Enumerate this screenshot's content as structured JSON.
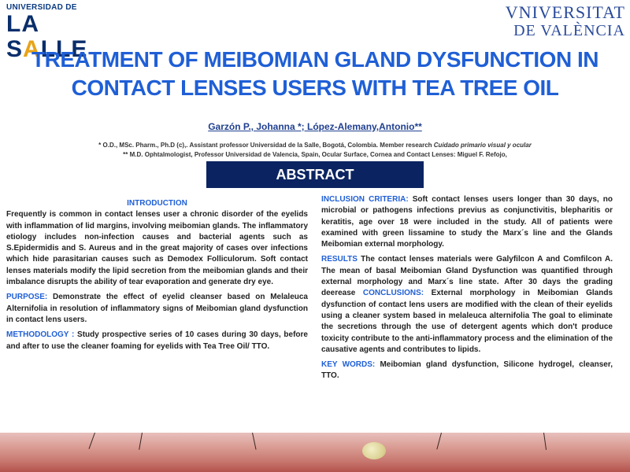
{
  "logos": {
    "left": {
      "small": "UNIVERSIDAD DE",
      "big_pre": "LA S",
      "big_accent": "A",
      "big_post": "LLE"
    },
    "right": {
      "line1": "VNIVERSITAT",
      "line2": "DE VALÈNCIA"
    }
  },
  "title": "TREATMENT OF MEIBOMIAN GLAND DYSFUNCTION IN CONTACT LENSES USERS WITH TEA TREE OIL",
  "authors": "Garzón P., Johanna *; López-Alemany,Antonio**",
  "affiliation1": {
    "text": "* O.D., MSc. Pharm., Ph.D (c),. Assistant professor Universidad de la Salle, Bogotá, Colombia. Member research ",
    "italic": "Cuidado primario visual y ocular"
  },
  "affiliation2": "** M.D. Ophtalmologist, Professor Universidad de Valencia, Spain, Ocular Surface, Cornea and Contact Lenses: Miguel F. Refojo,",
  "abstract_label": "ABSTRACT",
  "left": {
    "intro_heading": "INTRODUCTION",
    "intro_text": "Frequently is common in contact lenses user a chronic disorder of the eyelids with inflammation of lid margins, involving meibomian glands. The inflammatory etiology includes non-infection causes and bacterial agents such as S.Epidermidis and S. Aureus  and in the great majority of cases over infections which hide parasitarian causes such as Demodex Folliculorum. Soft contact lenses materials modify the lipid secretion from the meibomian glands and their imbalance disrupts the ability of tear evaporation and generate dry eye.",
    "purpose_label": "PURPOSE:",
    "purpose_text": " Demonstrate the effect of eyelid cleanser based on Melaleuca Alternifolia in resolution of inflammatory signs of Meibomian gland dysfunction in contact lens users.",
    "method_label": "METHODOLOGY :",
    "method_text": "  Study prospective series of 10 cases during 30 days, before and after to use the cleaner foaming for eyelids with Tea Tree Oil/ TTO."
  },
  "right": {
    "inclusion_label": "INCLUSION CRITERIA:",
    "inclusion_text": " Soft contact lenses users longer than 30 days, no microbial or pathogens infections previus as conjunctivitis, blepharitis or keratitis, age over 18 were included in the study. All of patients were examined with green lissamine to study the Marx´s line and the Glands Meibomian external morphology.",
    "results_label": "RESULTS",
    "results_text": " The contact lenses materials were Galyfilcon A  and Comfilcon A. The mean of basal Meibomian Gland Dysfunction was quantified through external morphology and Marx´s line state. After 30 days the grading deerease ",
    "conclusions_label": "CONCLUSIONS:",
    "conclusions_text": " External morphology in Meibomian Glands dysfunction of contact lens users are modified with the clean of their eyelids using a cleaner system based in melaleuca alternifolia The goal to eliminate the secretions through the use of detergent agents which don't produce toxicity contribute to the anti-inflammatory process and the elimination of the causative agents and contributes to lipids.",
    "keywords_label": "KEY WORDS:",
    "keywords_text": " Meibomian gland dysfunction, Silicone hydrogel, cleanser, TTO."
  }
}
